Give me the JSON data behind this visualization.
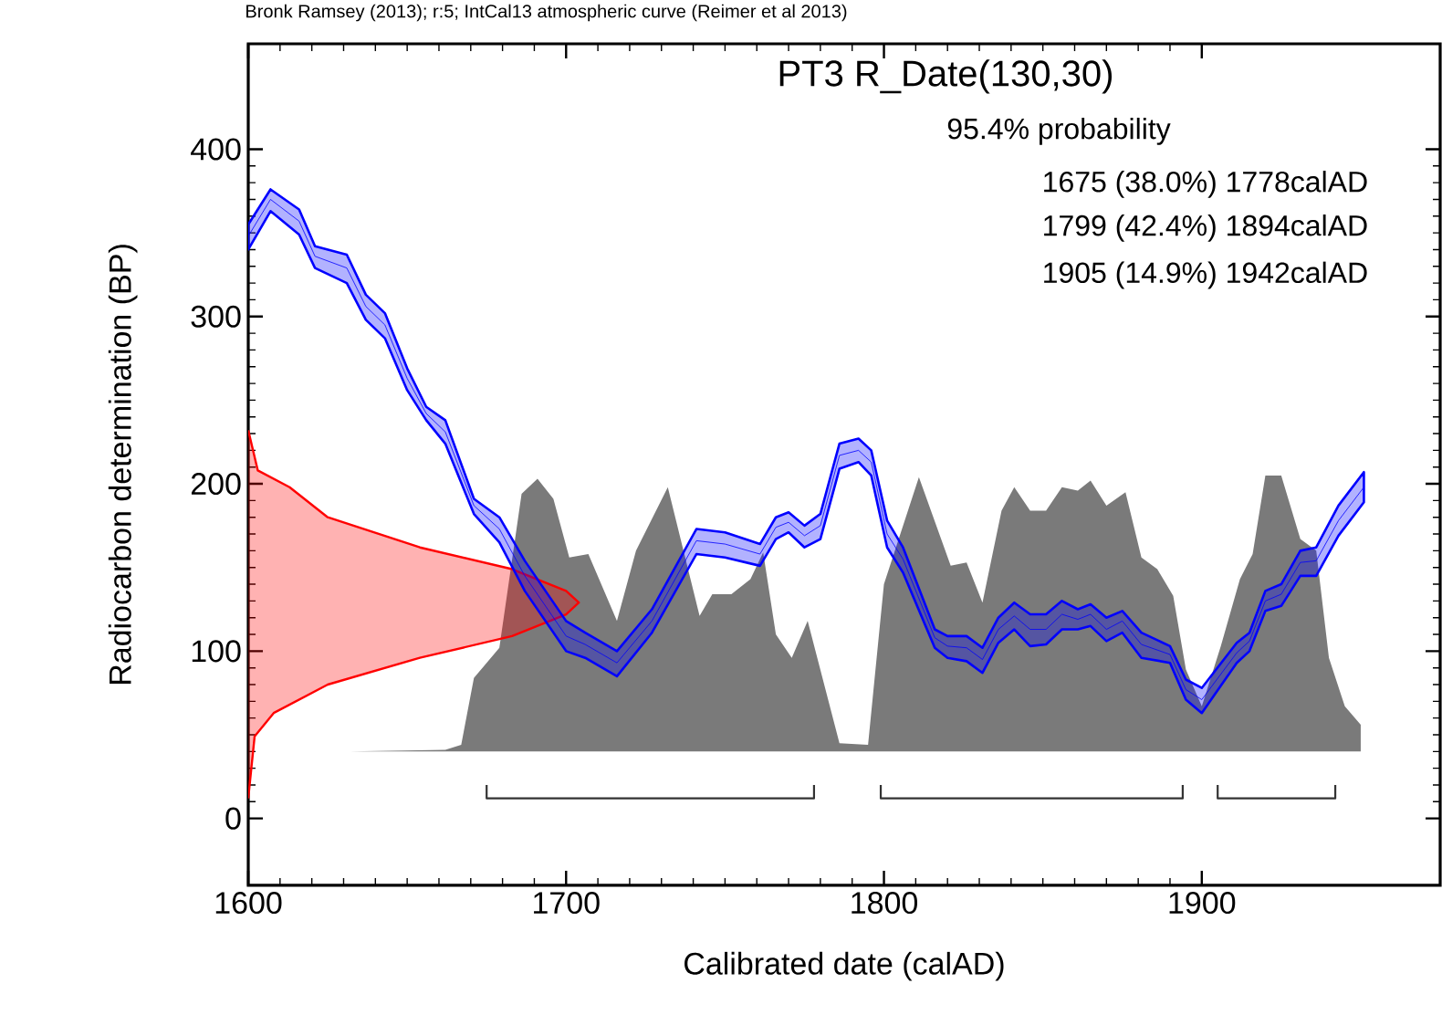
{
  "chart_data": {
    "type": "line",
    "title": "PT3 R_Date(130,30)",
    "xlabel": "Calibrated date (calAD)",
    "ylabel": "Radiocarbon determination (BP)",
    "annotations": [
      "Bronk Ramsey (2013); r:5; IntCal13 atmospheric curve (Reimer et al 2013)",
      "95.4% probability",
      "1675 (38.0%) 1778calAD",
      "1799 (42.4%) 1894calAD",
      "1905 (14.9%) 1942calAD"
    ],
    "xlim": [
      1600,
      1975
    ],
    "ylim": [
      -40,
      463
    ],
    "xticks": [
      1600,
      1700,
      1800,
      1900
    ],
    "yticks": [
      0,
      100,
      200,
      300,
      400
    ],
    "grid": false,
    "series": [
      {
        "type": "area",
        "color": "#7a7a7a",
        "x": [
          1632,
          1662,
          1667,
          1671,
          1679,
          1686,
          1691,
          1696,
          1701,
          1707,
          1716,
          1722,
          1732,
          1742,
          1746,
          1752,
          1758,
          1762,
          1766,
          1771,
          1776,
          1786,
          1795,
          1800,
          1811,
          1821,
          1826,
          1831,
          1837,
          1841,
          1846,
          1851,
          1856,
          1861,
          1865,
          1870,
          1876,
          1881,
          1886,
          1891,
          1895,
          1900,
          1906,
          1912,
          1916,
          1920,
          1925,
          1931,
          1936,
          1940,
          1945,
          1950,
          1950
        ],
        "values": [
          40,
          41,
          44,
          84,
          102,
          194,
          203,
          191,
          156,
          158,
          118,
          160,
          198,
          121,
          134,
          134,
          143,
          159,
          110,
          96,
          118,
          45,
          44,
          140,
          204,
          151,
          153,
          129,
          184,
          198,
          184,
          184,
          198,
          196,
          202,
          187,
          195,
          156,
          149,
          133,
          89,
          67,
          103,
          143,
          158,
          205,
          205,
          167,
          160,
          96,
          67,
          56,
          40
        ]
      },
      {
        "type": "area",
        "color": "#ff0000",
        "x": [
          1600,
          1603,
          1613,
          1625,
          1654,
          1683,
          1700,
          1704,
          1700,
          1683,
          1654,
          1625,
          1608,
          1602,
          1600
        ],
        "values": [
          232,
          208,
          198,
          180,
          162,
          149,
          136,
          129,
          122,
          109,
          96,
          80,
          63,
          49,
          12
        ]
      },
      {
        "color": "#0000ff",
        "x": [
          1600,
          1607,
          1616,
          1621,
          1631,
          1637,
          1643,
          1650,
          1656,
          1662,
          1671,
          1679,
          1687,
          1700,
          1706,
          1716,
          1727,
          1741,
          1750,
          1761,
          1766,
          1770,
          1775,
          1780,
          1786,
          1792,
          1796,
          1801,
          1806,
          1816,
          1820,
          1826,
          1831,
          1836,
          1841,
          1846,
          1851,
          1856,
          1861,
          1865,
          1870,
          1875,
          1881,
          1890,
          1895,
          1900,
          1911,
          1915,
          1920,
          1925,
          1931,
          1936,
          1943,
          1951
        ],
        "upper": [
          355,
          376,
          364,
          342,
          337,
          313,
          302,
          269,
          246,
          238,
          191,
          180,
          154,
          118,
          111,
          100,
          125,
          173,
          171,
          164,
          180,
          183,
          175,
          182,
          224,
          227,
          220,
          178,
          162,
          113,
          109,
          109,
          102,
          120,
          129,
          122,
          122,
          130,
          125,
          128,
          120,
          124,
          111,
          103,
          83,
          78,
          105,
          111,
          136,
          140,
          160,
          162,
          187,
          207
        ],
        "lower": [
          340,
          363,
          349,
          329,
          320,
          298,
          287,
          256,
          238,
          224,
          182,
          165,
          136,
          100,
          96,
          85,
          111,
          158,
          156,
          151,
          167,
          171,
          162,
          167,
          209,
          213,
          205,
          162,
          147,
          102,
          96,
          94,
          87,
          105,
          113,
          103,
          104,
          113,
          113,
          115,
          106,
          111,
          96,
          93,
          71,
          63,
          93,
          100,
          124,
          127,
          145,
          145,
          169,
          189
        ],
        "values": [
          348,
          370,
          357,
          336,
          329,
          306,
          295,
          263,
          242,
          231,
          187,
          173,
          145,
          109,
          104,
          93,
          118,
          166,
          164,
          158,
          174,
          177,
          169,
          175,
          217,
          220,
          213,
          170,
          155,
          108,
          103,
          102,
          95,
          113,
          121,
          113,
          113,
          122,
          119,
          122,
          113,
          118,
          104,
          98,
          77,
          71,
          99,
          106,
          130,
          134,
          153,
          154,
          178,
          198
        ]
      },
      {
        "type": "line",
        "color": "#333333",
        "x": [
          1675,
          1675,
          1778,
          1778
        ],
        "values": [
          20,
          12,
          12,
          20
        ]
      },
      {
        "type": "line",
        "color": "#333333",
        "x": [
          1799,
          1799,
          1894,
          1894
        ],
        "values": [
          20,
          12,
          12,
          20
        ]
      },
      {
        "type": "line",
        "color": "#333333",
        "x": [
          1905,
          1905,
          1942,
          1942
        ],
        "values": [
          20,
          12,
          12,
          20
        ]
      }
    ]
  }
}
